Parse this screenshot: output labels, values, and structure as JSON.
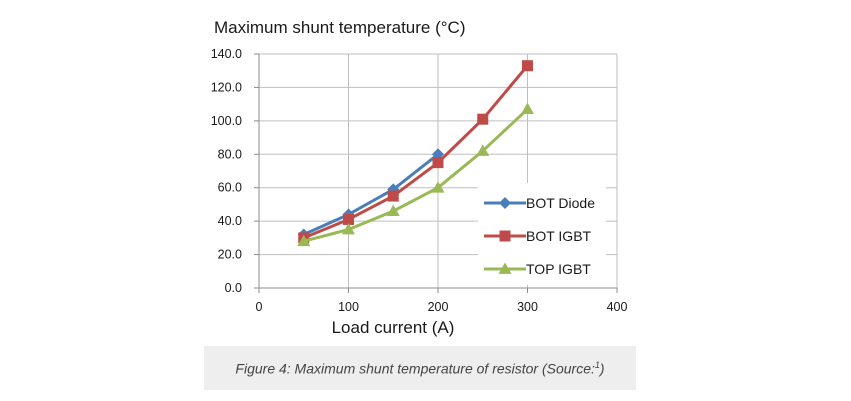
{
  "chart_data": {
    "type": "line",
    "title": "Maximum shunt temperature (°C)",
    "xlabel": "Load current (A)",
    "ylabel": "",
    "xlim": [
      0,
      400
    ],
    "ylim": [
      0,
      140
    ],
    "x_ticks": [
      0,
      100,
      200,
      300,
      400
    ],
    "y_ticks": [
      "0.0",
      "20.0",
      "40.0",
      "60.0",
      "80.0",
      "100.0",
      "120.0",
      "140.0"
    ],
    "grid": true,
    "legend_position": "bottom-right",
    "series": [
      {
        "name": "BOT Diode",
        "marker": "diamond",
        "color": "#4a7ebb",
        "points": [
          [
            50,
            32
          ],
          [
            100,
            44
          ],
          [
            150,
            59
          ],
          [
            200,
            80
          ]
        ]
      },
      {
        "name": "BOT IGBT",
        "marker": "square",
        "color": "#be4b48",
        "points": [
          [
            50,
            30
          ],
          [
            100,
            41
          ],
          [
            150,
            55
          ],
          [
            200,
            75
          ],
          [
            250,
            101
          ],
          [
            300,
            133
          ]
        ]
      },
      {
        "name": "TOP IGBT",
        "marker": "triangle",
        "color": "#98b954",
        "points": [
          [
            50,
            28
          ],
          [
            100,
            35
          ],
          [
            150,
            46
          ],
          [
            200,
            60
          ],
          [
            250,
            82
          ],
          [
            300,
            107
          ]
        ]
      }
    ]
  },
  "caption": {
    "prefix": "Figure 4: Maximum shunt temperature of resistor (Source:",
    "superscript": "1",
    "suffix": ")"
  }
}
